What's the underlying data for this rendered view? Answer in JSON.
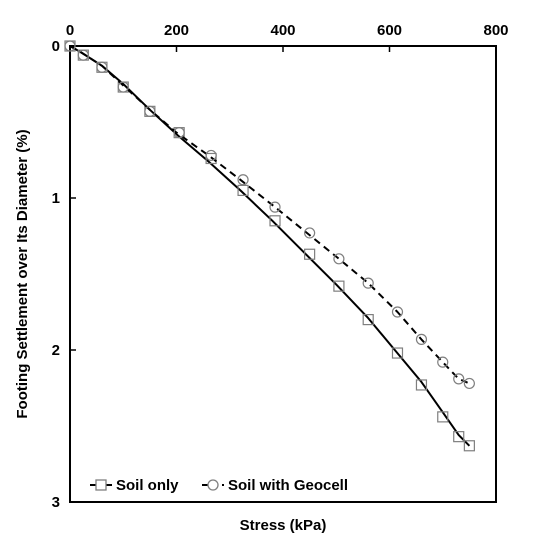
{
  "chart_data": {
    "type": "line",
    "title": "",
    "xlabel": "Stress (kPa)",
    "ylabel": "Footing Settlement over Its Diameter (%)",
    "xlim": [
      0,
      800
    ],
    "ylim": [
      0,
      3
    ],
    "y_inverted": true,
    "x_axis_position": "top",
    "grid": false,
    "legend_position": "bottom-left",
    "xticks": [
      "0",
      "200",
      "400",
      "600",
      "800"
    ],
    "yticks": [
      "0",
      "1",
      "2",
      "3"
    ],
    "series": [
      {
        "name": "Soil only",
        "line_style": "solid",
        "marker": "square",
        "color": "#000000",
        "marker_color": "#7f7f7f",
        "curve_x": [
          0,
          20,
          60,
          100,
          150,
          200,
          260,
          320,
          380,
          440,
          500,
          560,
          610,
          660,
          700,
          730,
          750
        ],
        "curve_y": [
          0,
          0.04,
          0.13,
          0.25,
          0.42,
          0.58,
          0.76,
          0.95,
          1.15,
          1.36,
          1.57,
          1.79,
          2.0,
          2.21,
          2.41,
          2.56,
          2.63
        ],
        "x": [
          0,
          25,
          60,
          100,
          150,
          205,
          265,
          325,
          385,
          450,
          505,
          560,
          615,
          660,
          700,
          730,
          750
        ],
        "y": [
          0,
          0.06,
          0.14,
          0.27,
          0.43,
          0.57,
          0.74,
          0.95,
          1.15,
          1.37,
          1.58,
          1.8,
          2.02,
          2.23,
          2.44,
          2.57,
          2.63
        ]
      },
      {
        "name": "Soil with Geocell",
        "line_style": "dashed",
        "marker": "circle",
        "color": "#000000",
        "marker_color": "#7f7f7f",
        "curve_x": [
          0,
          20,
          60,
          100,
          150,
          200,
          260,
          320,
          385,
          445,
          505,
          560,
          615,
          660,
          700,
          730,
          750
        ],
        "curve_y": [
          0,
          0.04,
          0.13,
          0.26,
          0.42,
          0.57,
          0.72,
          0.88,
          1.06,
          1.23,
          1.4,
          1.56,
          1.75,
          1.93,
          2.08,
          2.19,
          2.22
        ],
        "x": [
          0,
          25,
          60,
          100,
          150,
          205,
          265,
          325,
          385,
          450,
          505,
          560,
          615,
          660,
          700,
          730,
          750
        ],
        "y": [
          0,
          0.06,
          0.14,
          0.27,
          0.43,
          0.57,
          0.72,
          0.88,
          1.06,
          1.23,
          1.4,
          1.56,
          1.75,
          1.93,
          2.08,
          2.19,
          2.22
        ]
      }
    ]
  }
}
